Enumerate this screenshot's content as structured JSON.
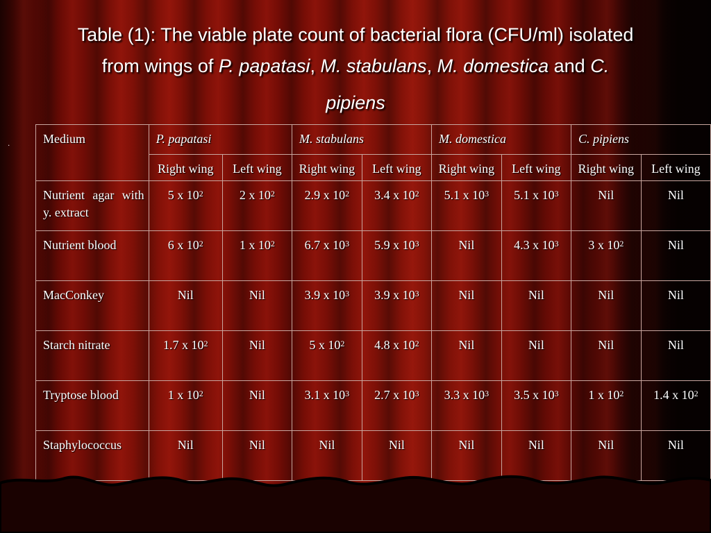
{
  "title": {
    "line1": "Table (1): The viable plate count of bacterial flora (CFU/ml) isolated",
    "line2_prefix": "from wings of ",
    "species1": "P. papatasi",
    "sep1": ", ",
    "species2": "M. stabulans",
    "sep2": ", ",
    "species3": "M. domestica",
    "and": " and ",
    "species4a": "C.",
    "species4b": "pipiens"
  },
  "bullet": "·",
  "table": {
    "medium_header": "Medium",
    "species_headers": [
      "P. papatasi",
      "M. stabulans",
      "M. domestica",
      "C. pipiens"
    ],
    "wing_headers": [
      "Right wing",
      "Left wing",
      "Right wing",
      "Left wing",
      "Right wing",
      "Left wing",
      "Right wing",
      "Left wing"
    ],
    "rows": [
      {
        "medium": "Nutrient agar with y. extract",
        "cells": [
          [
            "5 x 10",
            "2"
          ],
          [
            "2 x 10",
            "2"
          ],
          [
            "2.9 x 10",
            "2"
          ],
          [
            "3.4 x 10",
            "2"
          ],
          [
            "5.1 x 10",
            "3"
          ],
          [
            "5.1 x 10",
            "3"
          ],
          [
            "Nil",
            ""
          ],
          [
            "Nil",
            ""
          ]
        ]
      },
      {
        "medium": "Nutrient blood",
        "cells": [
          [
            "6 x 10",
            "2"
          ],
          [
            "1 x 10",
            "2"
          ],
          [
            "6.7 x 10",
            "3"
          ],
          [
            "5.9 x 10",
            "3"
          ],
          [
            "Nil",
            ""
          ],
          [
            "4.3 x 10",
            "3"
          ],
          [
            "3 x 10",
            "2"
          ],
          [
            "Nil",
            ""
          ]
        ]
      },
      {
        "medium": "MacConkey",
        "cells": [
          [
            "Nil",
            ""
          ],
          [
            "Nil",
            ""
          ],
          [
            "3.9 x 10",
            "3"
          ],
          [
            "3.9 x 10",
            "3"
          ],
          [
            "Nil",
            ""
          ],
          [
            "Nil",
            ""
          ],
          [
            "Nil",
            ""
          ],
          [
            "Nil",
            ""
          ]
        ]
      },
      {
        "medium": "Starch nitrate",
        "cells": [
          [
            "1.7 x 10",
            "2"
          ],
          [
            "Nil",
            ""
          ],
          [
            "5 x 10",
            "2"
          ],
          [
            "4.8 x 10",
            "2"
          ],
          [
            "Nil",
            ""
          ],
          [
            "Nil",
            ""
          ],
          [
            "Nil",
            ""
          ],
          [
            "Nil",
            ""
          ]
        ]
      },
      {
        "medium": "Tryptose blood",
        "cells": [
          [
            "1 x 10",
            "2"
          ],
          [
            "Nil",
            ""
          ],
          [
            "3.1 x 10",
            "3"
          ],
          [
            "2.7 x 10",
            "3"
          ],
          [
            "3.3 x 10",
            "3"
          ],
          [
            "3.5 x 10",
            "3"
          ],
          [
            "1 x 10",
            "2"
          ],
          [
            "1.4 x 10",
            "2"
          ]
        ]
      },
      {
        "medium": "Staphylococcus",
        "cells": [
          [
            "Nil",
            ""
          ],
          [
            "Nil",
            ""
          ],
          [
            "Nil",
            ""
          ],
          [
            "Nil",
            ""
          ],
          [
            "Nil",
            ""
          ],
          [
            "Nil",
            ""
          ],
          [
            "Nil",
            ""
          ],
          [
            "Nil",
            ""
          ]
        ]
      }
    ]
  }
}
